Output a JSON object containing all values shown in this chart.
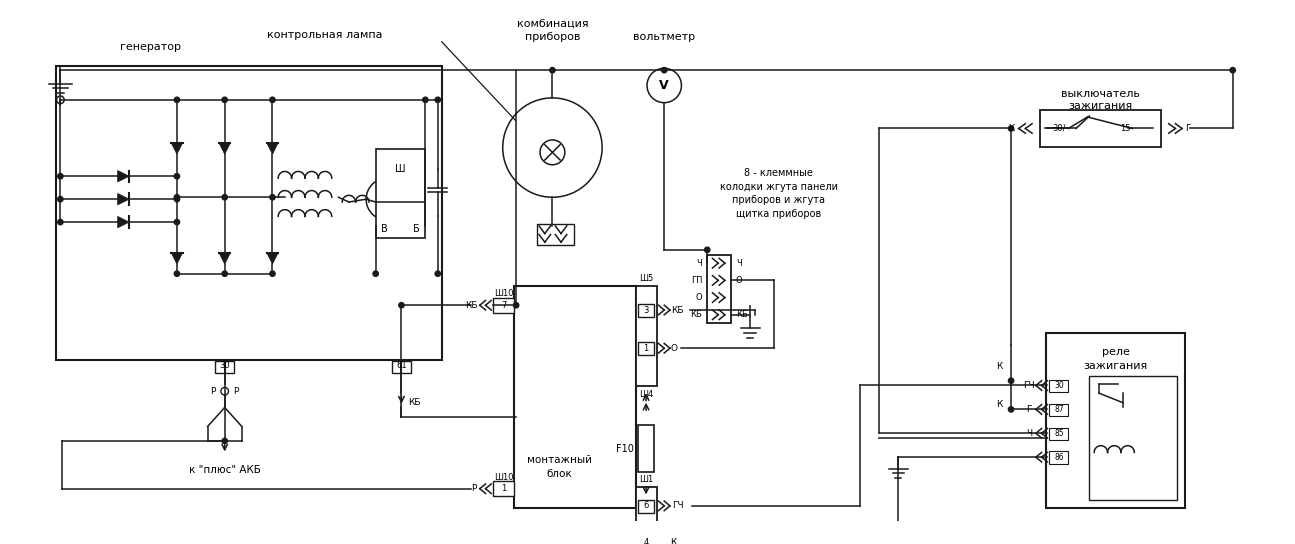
{
  "lc": "#1a1a1a",
  "lw": 1.1,
  "fw": 12.95,
  "fh": 5.44,
  "dpi": 100,
  "labels": {
    "generator": "генератор",
    "control_lamp": "контрольная лампа",
    "combo": [
      "комбинация",
      "приборов"
    ],
    "voltmeter_label": "вольтметр",
    "voltmeter_v": "V",
    "8term": [
      "8 - клеммные",
      "колодки жгута панели",
      "приборов и жгута",
      "щитка приборов"
    ],
    "ignition_sw": [
      "выключатель",
      "зажигания"
    ],
    "mounting": [
      "монтажный",
      "блок"
    ],
    "relay": [
      "реле",
      "зажигания"
    ],
    "akb": "к \"плюс\" АКБ",
    "f10": "F10"
  }
}
